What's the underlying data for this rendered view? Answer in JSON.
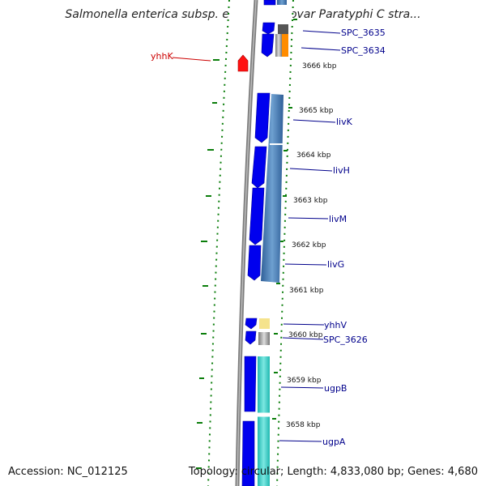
{
  "title": "Salmonella enterica subsp. enterica serovar Paratyphi C stra...",
  "footer": {
    "accession": "Accession: NC_012125",
    "stats": "Topology: circular; Length: 4,833,080 bp; Genes: 4,680"
  },
  "colors": {
    "backbone": "#808080",
    "cds_forward": "#0000ee",
    "cds_highlight": "#ff0000",
    "label_default": "#00008b",
    "label_highlight": "#cc0000",
    "dots": "#0a7d0a"
  },
  "ticks": [
    "3666 kbp",
    "3665 kbp",
    "3664 kbp",
    "3663 kbp",
    "3662 kbp",
    "3661 kbp",
    "3660 kbp",
    "3659 kbp",
    "3658 kbp"
  ],
  "gene_labels": [
    "SPC_3635",
    "SPC_3634",
    "yhhK",
    "livK",
    "livH",
    "livM",
    "livG",
    "yhhV",
    "SPC_3626",
    "ugpB",
    "ugpA"
  ]
}
